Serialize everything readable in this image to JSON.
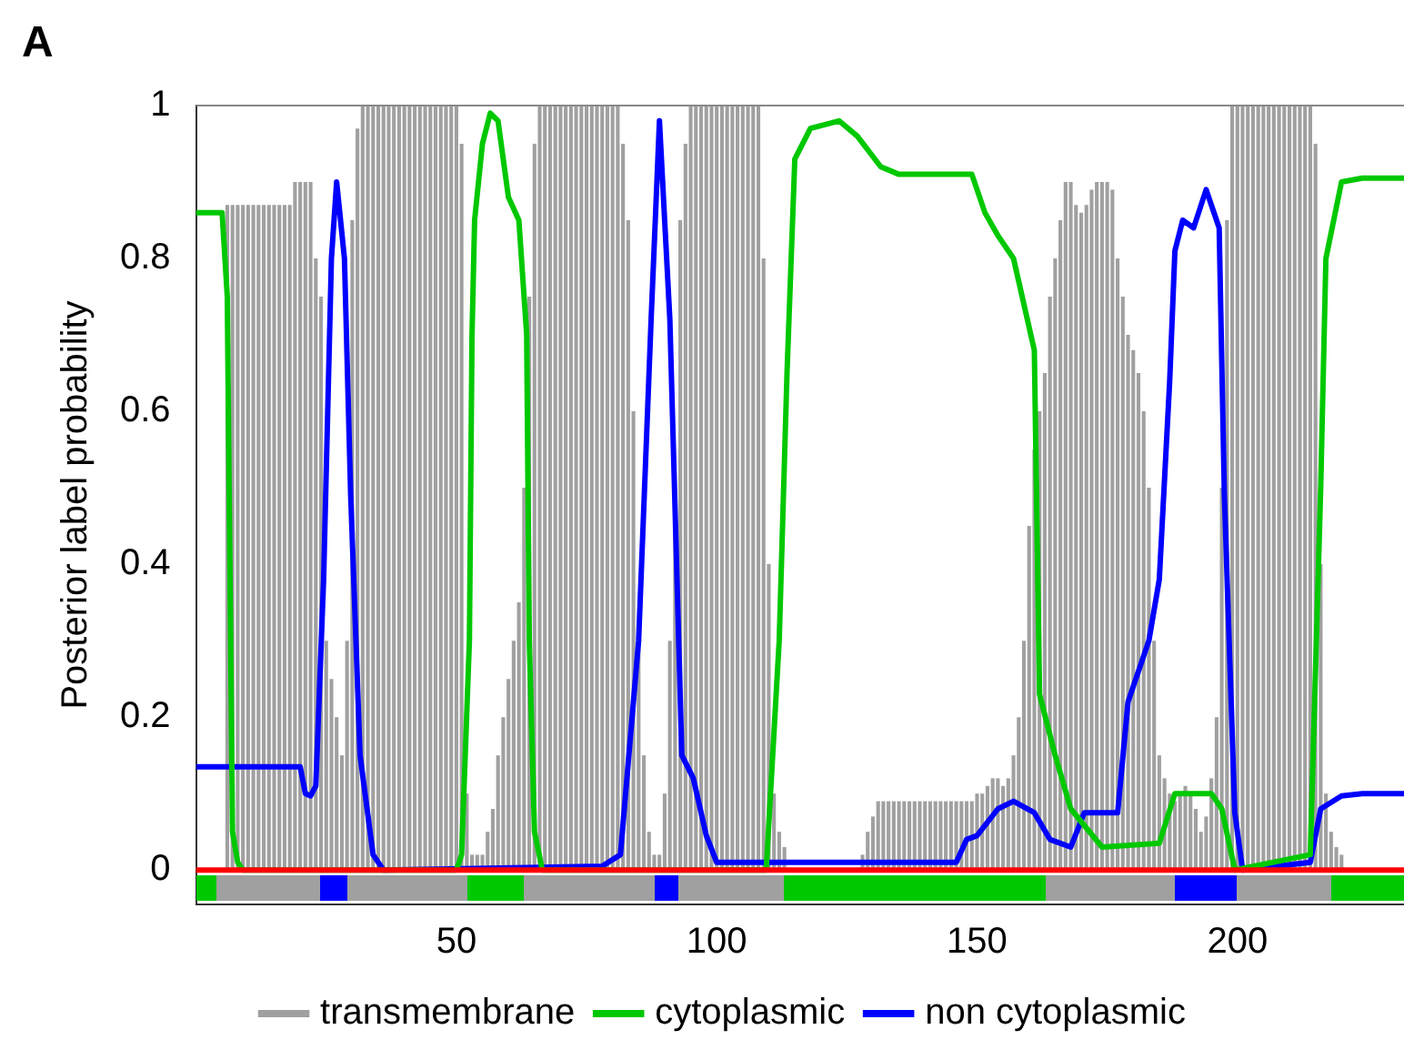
{
  "chart_data": {
    "type": "line",
    "title": "A",
    "ylabel": "Posterior label probability",
    "xlim": [
      0,
      232
    ],
    "xticks": [
      50,
      100,
      150,
      200
    ],
    "ylim": [
      -0.045,
      1
    ],
    "yticks": [
      0,
      0.2,
      0.4,
      0.6,
      0.8,
      1
    ],
    "grid": false,
    "legend": "bottom",
    "marker": "none",
    "line_style": "solid",
    "series": [
      {
        "name": "transmembrane",
        "type": "bar",
        "color": "#a0a0a0",
        "x": [
          1,
          2,
          3,
          4,
          5,
          6,
          7,
          8,
          9,
          10,
          11,
          12,
          13,
          14,
          15,
          16,
          17,
          18,
          19,
          20,
          21,
          22,
          23,
          24,
          25,
          26,
          27,
          28,
          29,
          30,
          31,
          32,
          33,
          34,
          35,
          36,
          37,
          38,
          39,
          40,
          41,
          42,
          43,
          44,
          45,
          46,
          47,
          48,
          49,
          50,
          51,
          52,
          53,
          54,
          55,
          56,
          57,
          58,
          59,
          60,
          61,
          62,
          63,
          64,
          65,
          66,
          67,
          68,
          69,
          70,
          71,
          72,
          73,
          74,
          75,
          76,
          77,
          78,
          79,
          80,
          81,
          82,
          83,
          84,
          85,
          86,
          87,
          88,
          89,
          90,
          91,
          92,
          93,
          94,
          95,
          96,
          97,
          98,
          99,
          100,
          101,
          102,
          103,
          104,
          105,
          106,
          107,
          108,
          109,
          110,
          111,
          112,
          113,
          114,
          115,
          116,
          117,
          118,
          119,
          120,
          121,
          122,
          123,
          124,
          125,
          126,
          127,
          128,
          129,
          130,
          131,
          132,
          133,
          134,
          135,
          136,
          137,
          138,
          139,
          140,
          141,
          142,
          143,
          144,
          145,
          146,
          147,
          148,
          149,
          150,
          151,
          152,
          153,
          154,
          155,
          156,
          157,
          158,
          159,
          160,
          161,
          162,
          163,
          164,
          165,
          166,
          167,
          168,
          169,
          170,
          171,
          172,
          173,
          174,
          175,
          176,
          177,
          178,
          179,
          180,
          181,
          182,
          183,
          184,
          185,
          186,
          187,
          188,
          189,
          190,
          191,
          192,
          193,
          194,
          195,
          196,
          197,
          198,
          199,
          200,
          201,
          202,
          203,
          204,
          205,
          206,
          207,
          208,
          209,
          210,
          211,
          212,
          213,
          214,
          215,
          216,
          217,
          218,
          219,
          220,
          221,
          222,
          223,
          224,
          225,
          226,
          227,
          228,
          229,
          230,
          231
        ],
        "values": [
          0,
          0,
          0,
          0,
          0,
          0.87,
          0.87,
          0.87,
          0.87,
          0.87,
          0.87,
          0.87,
          0.87,
          0.87,
          0.87,
          0.87,
          0.87,
          0.87,
          0.9,
          0.9,
          0.9,
          0.9,
          0.8,
          0.75,
          0.3,
          0.25,
          0.2,
          0.15,
          0.3,
          0.85,
          0.97,
          1,
          1,
          1,
          1,
          1,
          1,
          1,
          1,
          1,
          1,
          1,
          1,
          1,
          1,
          1,
          1,
          1,
          1,
          1,
          0.95,
          0.1,
          0.02,
          0.02,
          0.02,
          0.05,
          0.08,
          0.15,
          0.2,
          0.25,
          0.3,
          0.35,
          0.5,
          0.75,
          0.95,
          1,
          1,
          1,
          1,
          1,
          1,
          1,
          1,
          1,
          1,
          1,
          1,
          1,
          1,
          1,
          1,
          0.95,
          0.85,
          0.6,
          0.3,
          0.15,
          0.05,
          0.02,
          0.02,
          0.1,
          0.3,
          0.45,
          0.85,
          0.95,
          1,
          1,
          1,
          1,
          1,
          1,
          1,
          1,
          1,
          1,
          1,
          1,
          1,
          1,
          0.8,
          0.4,
          0.1,
          0.05,
          0.03,
          0,
          0,
          0,
          0,
          0,
          0,
          0,
          0,
          0,
          0,
          0,
          0,
          0,
          0,
          0.02,
          0.05,
          0.07,
          0.09,
          0.09,
          0.09,
          0.09,
          0.09,
          0.09,
          0.09,
          0.09,
          0.09,
          0.09,
          0.09,
          0.09,
          0.09,
          0.09,
          0.09,
          0.09,
          0.09,
          0.09,
          0.09,
          0.1,
          0.1,
          0.11,
          0.12,
          0.12,
          0.11,
          0.12,
          0.15,
          0.2,
          0.3,
          0.45,
          0.55,
          0.6,
          0.65,
          0.75,
          0.8,
          0.85,
          0.9,
          0.9,
          0.87,
          0.86,
          0.87,
          0.89,
          0.9,
          0.9,
          0.9,
          0.89,
          0.8,
          0.75,
          0.7,
          0.68,
          0.65,
          0.6,
          0.5,
          0.3,
          0.15,
          0.12,
          0.1,
          0.09,
          0.1,
          0.11,
          0.1,
          0.08,
          0.05,
          0.07,
          0.12,
          0.2,
          0.5,
          0.85,
          1,
          1,
          1,
          1,
          1,
          1,
          1,
          1,
          1,
          1,
          1,
          1,
          1,
          1,
          1,
          1,
          0.95,
          0.4,
          0.1,
          0.05,
          0.03,
          0.02,
          0,
          0,
          0,
          0,
          0,
          0,
          0,
          0,
          0,
          0,
          0
        ]
      },
      {
        "name": "cytoplasmic",
        "color": "#00c800",
        "x": [
          0,
          5,
          6,
          7,
          8,
          9,
          50,
          51,
          52.5,
          53,
          53.5,
          55,
          56.5,
          58,
          60,
          62,
          63.5,
          64,
          65,
          66.5,
          109.5,
          112,
          113.5,
          115,
          118,
          123.5,
          127,
          131.5,
          135,
          149,
          151.5,
          154,
          157,
          161,
          162,
          165,
          168,
          174,
          185,
          188,
          195,
          197,
          199.5,
          214,
          216,
          217,
          220,
          224,
          232
        ],
        "values": [
          0.86,
          0.86,
          0.75,
          0.05,
          0.01,
          0,
          0,
          0.02,
          0.3,
          0.7,
          0.85,
          0.95,
          0.99,
          0.98,
          0.88,
          0.85,
          0.7,
          0.3,
          0.05,
          0,
          0,
          0.3,
          0.65,
          0.93,
          0.97,
          0.98,
          0.96,
          0.92,
          0.91,
          0.91,
          0.86,
          0.83,
          0.8,
          0.68,
          0.23,
          0.15,
          0.08,
          0.03,
          0.035,
          0.1,
          0.1,
          0.08,
          0,
          0.02,
          0.5,
          0.8,
          0.9,
          0.905,
          0.905
        ]
      },
      {
        "name": "non cytoplasmic",
        "color": "#0000ff",
        "x": [
          0,
          20,
          21,
          22,
          23,
          24.5,
          26,
          27,
          28.5,
          29.7,
          31.5,
          34,
          36,
          78,
          81.5,
          85,
          87.4,
          89,
          91,
          93.3,
          95.5,
          98,
          100,
          146,
          148,
          150,
          154,
          157,
          161,
          164,
          168,
          170.6,
          177,
          179,
          183,
          185,
          187,
          188,
          189.5,
          191.6,
          194,
          196.5,
          197.5,
          199.5,
          201,
          214,
          216,
          220,
          224,
          232
        ],
        "values": [
          0.135,
          0.135,
          0.1,
          0.097,
          0.11,
          0.38,
          0.8,
          0.9,
          0.8,
          0.49,
          0.15,
          0.02,
          0,
          0.005,
          0.02,
          0.3,
          0.72,
          0.98,
          0.72,
          0.15,
          0.12,
          0.045,
          0.01,
          0.01,
          0.04,
          0.045,
          0.08,
          0.09,
          0.075,
          0.04,
          0.03,
          0.075,
          0.075,
          0.22,
          0.3,
          0.38,
          0.64,
          0.81,
          0.85,
          0.84,
          0.89,
          0.84,
          0.49,
          0.075,
          0,
          0.01,
          0.08,
          0.097,
          0.1,
          0.1
        ]
      }
    ],
    "ref_lines": [
      {
        "axis": "y",
        "value": 0,
        "color": "#ff0000"
      }
    ]
  }
}
